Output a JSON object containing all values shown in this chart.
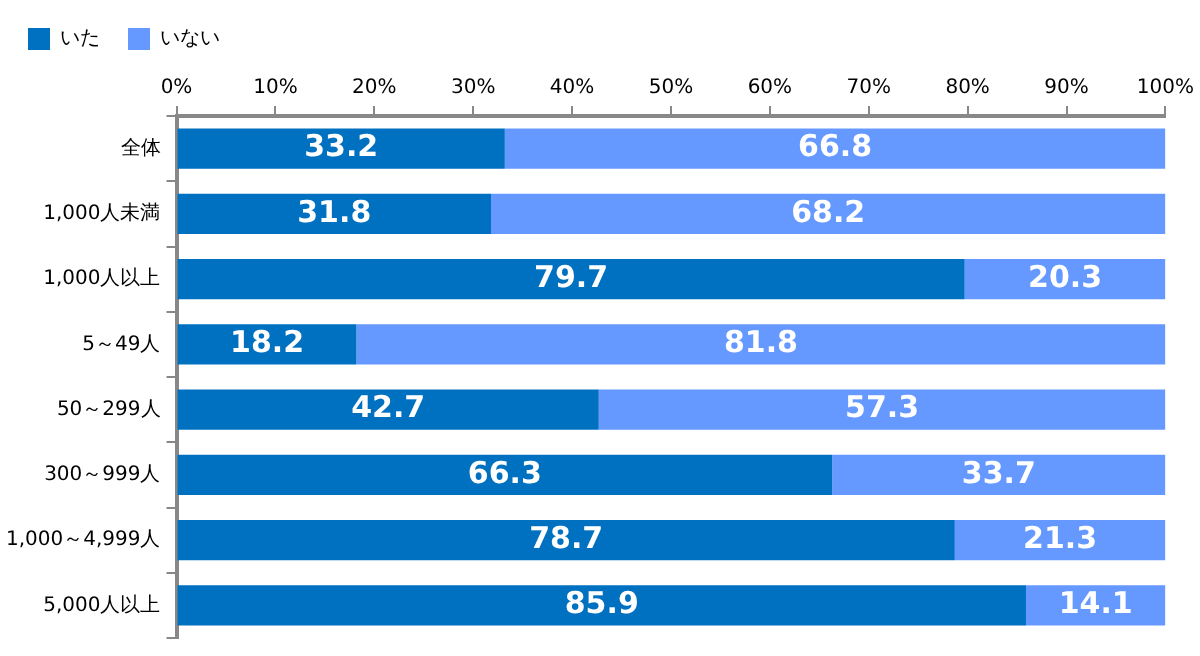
{
  "chart_data": {
    "type": "bar",
    "orientation": "horizontal",
    "stacked": true,
    "categories": [
      "全体",
      "1,000人未満",
      "1,000人以上",
      "5～49人",
      "50～299人",
      "300～999人",
      "1,000～4,999人",
      "5,000人以上"
    ],
    "series": [
      {
        "name": "いた",
        "color": "#0070c0",
        "values": [
          33.2,
          31.8,
          79.7,
          18.2,
          42.7,
          66.3,
          78.7,
          85.9
        ]
      },
      {
        "name": "いない",
        "color": "#6699ff",
        "values": [
          66.8,
          68.2,
          20.3,
          81.8,
          57.3,
          33.7,
          21.3,
          14.1
        ]
      }
    ],
    "xlim": [
      0,
      100
    ],
    "xticks": [
      {
        "value": 0,
        "label": "0%"
      },
      {
        "value": 10,
        "label": "10%"
      },
      {
        "value": 20,
        "label": "20%"
      },
      {
        "value": 30,
        "label": "30%"
      },
      {
        "value": 40,
        "label": "40%"
      },
      {
        "value": 50,
        "label": "50%"
      },
      {
        "value": 60,
        "label": "60%"
      },
      {
        "value": 70,
        "label": "70%"
      },
      {
        "value": 80,
        "label": "80%"
      },
      {
        "value": 90,
        "label": "90%"
      },
      {
        "value": 100,
        "label": "100%"
      }
    ],
    "grid": false,
    "legend": "top left",
    "data_labels": true
  }
}
